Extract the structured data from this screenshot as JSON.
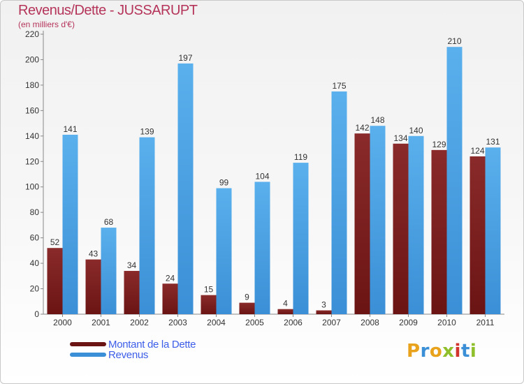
{
  "header": {
    "title": "Revenus/Dette - JUSSARUPT",
    "subtitle": "(en milliers d'€)"
  },
  "colors": {
    "dette": "#6b1414",
    "revenus": "#3b8fd6",
    "title": "#b5345a",
    "legend_text": "#3d5ee8"
  },
  "legend": {
    "items": [
      {
        "label": "Montant de la Dette",
        "color": "#6b1414"
      },
      {
        "label": "Revenus",
        "color": "#3b8fd6"
      }
    ]
  },
  "logo": {
    "text": "Proxiti",
    "letters": [
      "P",
      "r",
      "o",
      "x",
      "i",
      "t",
      "i"
    ],
    "colors": [
      "#e8a21c",
      "#3b8fd6",
      "#e8a21c",
      "#8fbf2a",
      "#d0342c",
      "#3b8fd6",
      "#8fbf2a"
    ]
  },
  "chart_data": {
    "type": "bar",
    "title": "Revenus/Dette - JUSSARUPT",
    "subtitle": "(en milliers d'€)",
    "xlabel": "",
    "ylabel": "",
    "categories": [
      "2000",
      "2001",
      "2002",
      "2003",
      "2004",
      "2005",
      "2006",
      "2007",
      "2008",
      "2009",
      "2010",
      "2011"
    ],
    "series": [
      {
        "name": "Montant de la Dette",
        "values": [
          52,
          43,
          34,
          24,
          15,
          9,
          4,
          3,
          142,
          134,
          129,
          124
        ]
      },
      {
        "name": "Revenus",
        "values": [
          141,
          68,
          139,
          197,
          99,
          104,
          119,
          175,
          148,
          140,
          210,
          131
        ]
      }
    ],
    "ylim": [
      0,
      220
    ],
    "yticks": [
      0,
      20,
      40,
      60,
      80,
      100,
      120,
      140,
      160,
      180,
      200,
      220
    ],
    "grid": false,
    "legend_position": "bottom-left"
  }
}
